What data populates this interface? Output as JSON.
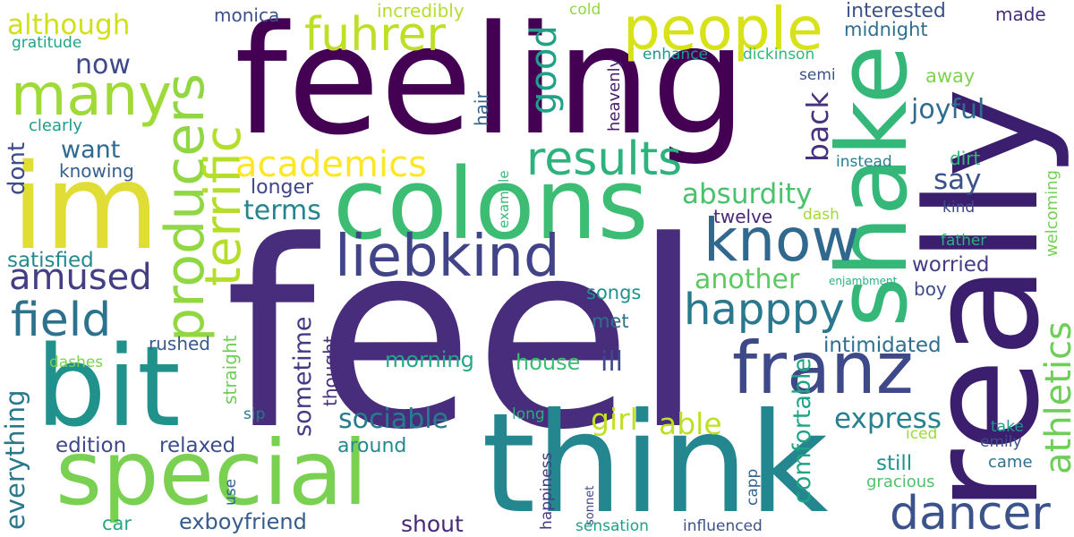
{
  "words": [
    {
      "text": "feel",
      "color": "#472d7b"
    },
    {
      "text": "feeling",
      "color": "#440154"
    },
    {
      "text": "really",
      "color": "#3b1f6e"
    },
    {
      "text": "think",
      "color": "#24868e"
    },
    {
      "text": "im",
      "color": "#e1dd37"
    },
    {
      "text": "shake",
      "color": "#35b779"
    },
    {
      "text": "colons",
      "color": "#3dbc74"
    },
    {
      "text": "special",
      "color": "#7ad151"
    },
    {
      "text": "bit",
      "color": "#21918c"
    },
    {
      "text": "people",
      "color": "#d8e219"
    },
    {
      "text": "producers",
      "color": "#90d743"
    },
    {
      "text": "franz",
      "color": "#3e4989"
    },
    {
      "text": "many",
      "color": "#a0da39"
    },
    {
      "text": "liebkind",
      "color": "#414487"
    },
    {
      "text": "know",
      "color": "#31688e"
    },
    {
      "text": "dancer",
      "color": "#3b528b"
    },
    {
      "text": "terrific",
      "color": "#b5de2b"
    },
    {
      "text": "fuhrer",
      "color": "#bddf26"
    },
    {
      "text": "results",
      "color": "#2db27d"
    },
    {
      "text": "academics",
      "color": "#fde725"
    },
    {
      "text": "happpy",
      "color": "#2a788e"
    },
    {
      "text": "athletics",
      "color": "#6ece58"
    },
    {
      "text": "field",
      "color": "#2c728e"
    },
    {
      "text": "amused",
      "color": "#433e85"
    },
    {
      "text": "good",
      "color": "#1fa088"
    },
    {
      "text": "absurdity",
      "color": "#4ac16d"
    },
    {
      "text": "another",
      "color": "#5ec962"
    },
    {
      "text": "back",
      "color": "#46327e"
    },
    {
      "text": "girl",
      "color": "#c2df23"
    },
    {
      "text": "able",
      "color": "#bddf26"
    },
    {
      "text": "express",
      "color": "#26828e"
    },
    {
      "text": "everything",
      "color": "#2a788e"
    },
    {
      "text": "sociable",
      "color": "#287c8e"
    },
    {
      "text": "comfortable",
      "color": "#20a486"
    },
    {
      "text": "joyful",
      "color": "#2f6c8e"
    },
    {
      "text": "although",
      "color": "#d0e11c"
    },
    {
      "text": "now",
      "color": "#3f4889"
    },
    {
      "text": "want",
      "color": "#306a8e"
    },
    {
      "text": "say",
      "color": "#3b528b"
    },
    {
      "text": "terms",
      "color": "#25858e"
    },
    {
      "text": "ill",
      "color": "#3e4a89"
    },
    {
      "text": "relaxed",
      "color": "#3d4d8a"
    },
    {
      "text": "edition",
      "color": "#3f4788"
    },
    {
      "text": "interested",
      "color": "#3b528b"
    },
    {
      "text": "sometime",
      "color": "#443983"
    },
    {
      "text": "satisfied",
      "color": "#23898e"
    },
    {
      "text": "dont",
      "color": "#3e4c8a"
    },
    {
      "text": "shout",
      "color": "#482878"
    },
    {
      "text": "exboyfriend",
      "color": "#365c8d"
    },
    {
      "text": "still",
      "color": "#1f948c"
    },
    {
      "text": "morning",
      "color": "#22a884"
    },
    {
      "text": "house",
      "color": "#3dbc74"
    },
    {
      "text": "longer",
      "color": "#404688"
    },
    {
      "text": "worried",
      "color": "#433e85"
    },
    {
      "text": "intimidated",
      "color": "#2e6e8e"
    },
    {
      "text": "twelve",
      "color": "#482878"
    },
    {
      "text": "midnight",
      "color": "#2e6f8e"
    },
    {
      "text": "made",
      "color": "#472f7d"
    },
    {
      "text": "songs",
      "color": "#21918c"
    },
    {
      "text": "around",
      "color": "#238a8d"
    },
    {
      "text": "car",
      "color": "#22a785"
    },
    {
      "text": "rushed",
      "color": "#38598c"
    },
    {
      "text": "hair",
      "color": "#32658e"
    },
    {
      "text": "monica",
      "color": "#3b518b"
    },
    {
      "text": "knowing",
      "color": "#355f8d"
    },
    {
      "text": "clearly",
      "color": "#1e9c89"
    },
    {
      "text": "incredibly",
      "color": "#b5de2b"
    },
    {
      "text": "away",
      "color": "#7fd34e"
    },
    {
      "text": "dirt",
      "color": "#35b779"
    },
    {
      "text": "boy",
      "color": "#3e4989"
    },
    {
      "text": "met",
      "color": "#2d718e"
    },
    {
      "text": "straight",
      "color": "#6ece58"
    },
    {
      "text": "thought",
      "color": "#472d7b"
    },
    {
      "text": "heavenly",
      "color": "#481d6f"
    },
    {
      "text": "enhance",
      "color": "#1f978b"
    },
    {
      "text": "dickinson",
      "color": "#35b779"
    },
    {
      "text": "gratitude",
      "color": "#20a486"
    },
    {
      "text": "welcoming",
      "color": "#73d056"
    },
    {
      "text": "instead",
      "color": "#277f8e"
    },
    {
      "text": "kind",
      "color": "#3e4a89"
    },
    {
      "text": "father",
      "color": "#2cb17e"
    },
    {
      "text": "dash",
      "color": "#a2da37"
    },
    {
      "text": "cold",
      "color": "#90d743"
    },
    {
      "text": "semi",
      "color": "#3b528b"
    },
    {
      "text": "came",
      "color": "#2c728e"
    },
    {
      "text": "gracious",
      "color": "#4ec36b"
    },
    {
      "text": "emily",
      "color": "#3d4d8a"
    },
    {
      "text": "iced",
      "color": "#9bd93c"
    },
    {
      "text": "take",
      "color": "#1f9a8a"
    },
    {
      "text": "dashes",
      "color": "#7ad151"
    },
    {
      "text": "sip",
      "color": "#2a788e"
    },
    {
      "text": "use",
      "color": "#32648e"
    },
    {
      "text": "capp",
      "color": "#32648e"
    },
    {
      "text": "happiness",
      "color": "#443a83"
    },
    {
      "text": "sonnet",
      "color": "#3f4889"
    },
    {
      "text": "long",
      "color": "#28ae80"
    },
    {
      "text": "sensation",
      "color": "#1fa088"
    },
    {
      "text": "influenced",
      "color": "#3b528b"
    },
    {
      "text": "example",
      "color": "#38b977"
    },
    {
      "text": "enjambment",
      "color": "#2ab07f"
    }
  ]
}
